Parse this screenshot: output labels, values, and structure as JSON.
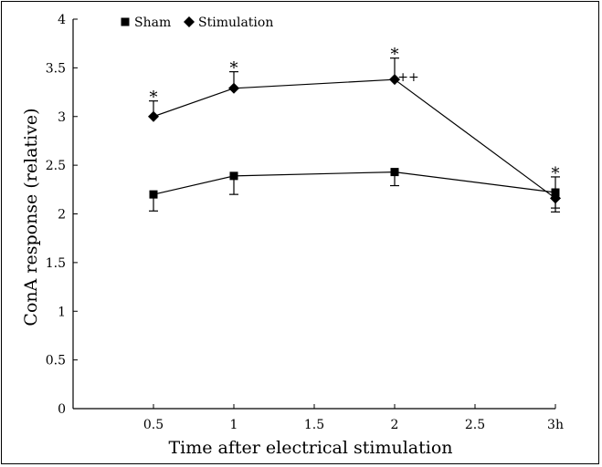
{
  "chart_data": {
    "type": "line",
    "xlabel": "Time after electrical stimulation",
    "ylabel": "ConA response (relative)",
    "x": [
      0.5,
      1,
      2,
      3
    ],
    "xlim": [
      0,
      3
    ],
    "ylim": [
      0,
      4
    ],
    "x_ticks": [
      "0.5",
      "1",
      "1.5",
      "2",
      "2.5",
      "3h"
    ],
    "y_ticks": [
      "0",
      "0.5",
      "1",
      "1.5",
      "2",
      "2.5",
      "3",
      "3.5",
      "4"
    ],
    "grid": false,
    "legend_position": "top-left",
    "series": [
      {
        "name": "Sham",
        "marker": "square",
        "values": [
          2.2,
          2.39,
          2.43,
          2.22
        ],
        "error_upper": [
          2.2,
          2.39,
          2.43,
          2.38
        ],
        "error_lower": [
          2.03,
          2.2,
          2.29,
          2.06
        ]
      },
      {
        "name": "Stimulation",
        "marker": "diamond",
        "values": [
          3.0,
          3.29,
          3.38,
          2.16
        ],
        "error_upper": [
          3.16,
          3.46,
          3.6,
          2.16
        ],
        "error_lower": [
          3.0,
          3.29,
          3.38,
          2.02
        ]
      }
    ],
    "annotations": [
      {
        "text": "*",
        "x": 0.5,
        "y": 3.16
      },
      {
        "text": "*",
        "x": 1,
        "y": 3.46
      },
      {
        "text": "*",
        "x": 2,
        "y": 3.6
      },
      {
        "text": "++",
        "x": 2,
        "y": 3.38
      },
      {
        "text": "*",
        "x": 3,
        "y": 2.38
      }
    ]
  }
}
